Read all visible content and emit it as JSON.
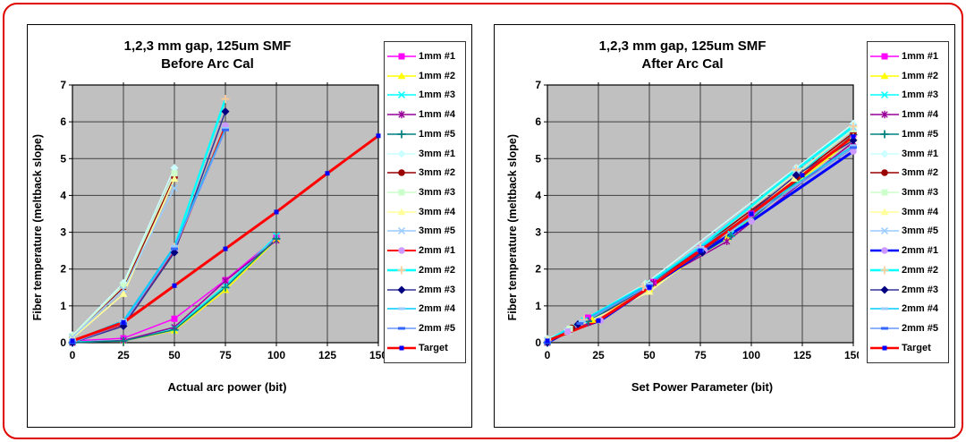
{
  "figure": {
    "frame_color": "#e00000",
    "panel_border_color": "#000000",
    "plot_bg": "#c0c0c0",
    "grid_color": "#404040"
  },
  "chart_data": [
    {
      "type": "line",
      "title_line1": "1,2,3 mm gap, 125um SMF",
      "title_line2": "Before Arc Cal",
      "xlabel": "Actual arc power (bit)",
      "ylabel": "Fiber temperature (meltback slope)",
      "xlim": [
        0,
        150
      ],
      "ylim": [
        0,
        7
      ],
      "x_ticks": [
        0,
        25,
        50,
        75,
        100,
        125,
        150
      ],
      "y_ticks": [
        0,
        1,
        2,
        3,
        4,
        5,
        6,
        7
      ],
      "grid": true,
      "legend_position": "right",
      "series": [
        {
          "name": "1mm #1",
          "line_color": "#FF00FF",
          "marker": "square",
          "marker_color": "#FF00FF",
          "width": 1.5,
          "points": [
            [
              0,
              0.05
            ],
            [
              25,
              0.12
            ],
            [
              50,
              0.65
            ],
            [
              75,
              1.7
            ],
            [
              100,
              2.85
            ]
          ]
        },
        {
          "name": "1mm #2",
          "line_color": "#FFFF00",
          "marker": "triangle",
          "marker_color": "#FFFF00",
          "width": 1.5,
          "points": [
            [
              0,
              0.02
            ],
            [
              25,
              0.05
            ],
            [
              50,
              0.33
            ],
            [
              75,
              1.43
            ],
            [
              100,
              2.8
            ]
          ]
        },
        {
          "name": "1mm #3",
          "line_color": "#00FFFF",
          "marker": "x",
          "marker_color": "#00FFFF",
          "width": 1.5,
          "points": [
            [
              0,
              0.02
            ],
            [
              25,
              0.06
            ],
            [
              50,
              0.4
            ],
            [
              75,
              1.55
            ],
            [
              100,
              2.9
            ]
          ]
        },
        {
          "name": "1mm #4",
          "line_color": "#990099",
          "marker": "asterisk",
          "marker_color": "#990099",
          "width": 1.5,
          "points": [
            [
              0,
              0.0
            ],
            [
              25,
              0.06
            ],
            [
              50,
              0.42
            ],
            [
              75,
              1.68
            ],
            [
              100,
              2.78
            ]
          ]
        },
        {
          "name": "1mm #5",
          "line_color": "#008080",
          "marker": "plus",
          "marker_color": "#008080",
          "width": 1.5,
          "points": [
            [
              0,
              0.0
            ],
            [
              25,
              0.05
            ],
            [
              50,
              0.35
            ],
            [
              75,
              1.5
            ],
            [
              100,
              2.82
            ]
          ]
        },
        {
          "name": "3mm #1",
          "line_color": "#CCFFFF",
          "marker": "diamond",
          "marker_color": "#CCFFFF",
          "width": 1.5,
          "points": [
            [
              0,
              0.2
            ],
            [
              25,
              1.62
            ],
            [
              50,
              4.75
            ]
          ]
        },
        {
          "name": "3mm #2",
          "line_color": "#990000",
          "marker": "circle",
          "marker_color": "#990000",
          "width": 1.5,
          "points": [
            [
              0,
              0.15
            ],
            [
              25,
              1.5
            ],
            [
              50,
              4.5
            ]
          ]
        },
        {
          "name": "3mm #3",
          "line_color": "#CCFFCC",
          "marker": "square",
          "marker_color": "#CCFFCC",
          "width": 1.5,
          "points": [
            [
              0,
              0.18
            ],
            [
              25,
              1.55
            ],
            [
              50,
              4.6
            ]
          ]
        },
        {
          "name": "3mm #4",
          "line_color": "#FFFF99",
          "marker": "triangle",
          "marker_color": "#FFFF99",
          "width": 1.5,
          "points": [
            [
              0,
              0.12
            ],
            [
              25,
              1.32
            ],
            [
              50,
              4.45
            ]
          ]
        },
        {
          "name": "3mm #5",
          "line_color": "#99CCFF",
          "marker": "x",
          "marker_color": "#99CCFF",
          "width": 1.5,
          "points": [
            [
              0,
              0.15
            ],
            [
              25,
              1.45
            ],
            [
              50,
              4.2
            ]
          ]
        },
        {
          "name": "2mm #1",
          "line_color": "#FF0000",
          "marker": "circle",
          "marker_color": "#CC99FF",
          "width": 2,
          "points": [
            [
              0,
              0.03
            ],
            [
              25,
              0.5
            ],
            [
              50,
              2.5
            ],
            [
              75,
              5.9
            ]
          ]
        },
        {
          "name": "2mm #2",
          "line_color": "#00FFFF",
          "marker": "plus",
          "marker_color": "#FFCC99",
          "width": 2.5,
          "points": [
            [
              0,
              0.03
            ],
            [
              25,
              0.55
            ],
            [
              50,
              2.6
            ],
            [
              75,
              6.62
            ]
          ]
        },
        {
          "name": "2mm #3",
          "line_color": "#333399",
          "marker": "diamond",
          "marker_color": "#000080",
          "width": 1.5,
          "points": [
            [
              0,
              0.0
            ],
            [
              25,
              0.45
            ],
            [
              50,
              2.45
            ],
            [
              75,
              6.28
            ]
          ]
        },
        {
          "name": "2mm #4",
          "line_color": "#00CCFF",
          "marker": "dash",
          "marker_color": "#99CCFF",
          "width": 1.5,
          "points": [
            [
              0,
              0.05
            ],
            [
              25,
              0.6
            ],
            [
              50,
              2.62
            ],
            [
              75,
              5.82
            ]
          ]
        },
        {
          "name": "2mm #5",
          "line_color": "#6699FF",
          "marker": "dash",
          "marker_color": "#3366FF",
          "width": 1.5,
          "points": [
            [
              0,
              0.0
            ],
            [
              25,
              0.52
            ],
            [
              50,
              2.55
            ],
            [
              75,
              5.78
            ]
          ]
        },
        {
          "name": "Target",
          "line_color": "#FF0000",
          "marker": "square-small",
          "marker_color": "#0000FF",
          "width": 3,
          "points": [
            [
              0,
              0.05
            ],
            [
              25,
              0.55
            ],
            [
              50,
              1.55
            ],
            [
              75,
              2.55
            ],
            [
              100,
              3.55
            ],
            [
              125,
              4.6
            ],
            [
              150,
              5.62
            ]
          ]
        }
      ]
    },
    {
      "type": "line",
      "title_line1": "1,2,3 mm gap, 125um SMF",
      "title_line2": "After Arc Cal",
      "xlabel": "Set Power Parameter (bit)",
      "ylabel": "Fiber temperature (meltback slope)",
      "xlim": [
        0,
        150
      ],
      "ylim": [
        0,
        7
      ],
      "x_ticks": [
        0,
        25,
        50,
        75,
        100,
        125,
        150
      ],
      "y_ticks": [
        0,
        1,
        2,
        3,
        4,
        5,
        6,
        7
      ],
      "grid": true,
      "legend_position": "right",
      "series": [
        {
          "name": "1mm #1",
          "line_color": "#FF00FF",
          "marker": "square",
          "marker_color": "#FF00FF",
          "width": 1.5,
          "points": [
            [
              0,
              0.05
            ],
            [
              20,
              0.68
            ],
            [
              52,
              1.65
            ],
            [
              75,
              2.55
            ],
            [
              100,
              3.5
            ],
            [
              150,
              5.6
            ]
          ]
        },
        {
          "name": "1mm #2",
          "line_color": "#FFFF00",
          "marker": "triangle",
          "marker_color": "#FFFF00",
          "width": 1.5,
          "points": [
            [
              0,
              0.0
            ],
            [
              22,
              0.62
            ],
            [
              50,
              1.45
            ],
            [
              88,
              2.85
            ],
            [
              150,
              5.55
            ]
          ]
        },
        {
          "name": "1mm #3",
          "line_color": "#00FFFF",
          "marker": "x",
          "marker_color": "#00FFFF",
          "width": 1.5,
          "points": [
            [
              0,
              0.02
            ],
            [
              18,
              0.6
            ],
            [
              50,
              1.6
            ],
            [
              90,
              2.95
            ],
            [
              150,
              5.85
            ]
          ]
        },
        {
          "name": "1mm #4",
          "line_color": "#990099",
          "marker": "asterisk",
          "marker_color": "#990099",
          "width": 1.5,
          "points": [
            [
              0,
              0.0
            ],
            [
              20,
              0.55
            ],
            [
              52,
              1.62
            ],
            [
              88,
              2.75
            ],
            [
              150,
              5.45
            ]
          ]
        },
        {
          "name": "1mm #5",
          "line_color": "#008080",
          "marker": "plus",
          "marker_color": "#008080",
          "width": 1.5,
          "points": [
            [
              0,
              0.0
            ],
            [
              20,
              0.58
            ],
            [
              50,
              1.55
            ],
            [
              90,
              2.9
            ],
            [
              150,
              5.65
            ]
          ]
        },
        {
          "name": "3mm #1",
          "line_color": "#CCFFFF",
          "marker": "diamond",
          "marker_color": "#CCFFFF",
          "width": 1.5,
          "points": [
            [
              0,
              0.1
            ],
            [
              10,
              0.35
            ],
            [
              48,
              1.6
            ],
            [
              122,
              4.75
            ],
            [
              150,
              5.95
            ]
          ]
        },
        {
          "name": "3mm #2",
          "line_color": "#990000",
          "marker": "circle",
          "marker_color": "#990000",
          "width": 1.5,
          "points": [
            [
              0,
              0.05
            ],
            [
              12,
              0.4
            ],
            [
              50,
              1.55
            ],
            [
              122,
              4.5
            ],
            [
              150,
              5.7
            ]
          ]
        },
        {
          "name": "3mm #3",
          "line_color": "#CCFFCC",
          "marker": "square",
          "marker_color": "#CCFFCC",
          "width": 1.5,
          "points": [
            [
              0,
              0.08
            ],
            [
              11,
              0.38
            ],
            [
              49,
              1.58
            ],
            [
              122,
              4.6
            ],
            [
              150,
              5.8
            ]
          ]
        },
        {
          "name": "3mm #4",
          "line_color": "#FFFF99",
          "marker": "triangle",
          "marker_color": "#FFFF99",
          "width": 1.5,
          "points": [
            [
              0,
              0.05
            ],
            [
              10,
              0.3
            ],
            [
              50,
              1.38
            ],
            [
              121,
              4.45
            ],
            [
              150,
              5.6
            ]
          ]
        },
        {
          "name": "3mm #5",
          "line_color": "#99CCFF",
          "marker": "x",
          "marker_color": "#99CCFF",
          "width": 1.5,
          "points": [
            [
              0,
              0.06
            ],
            [
              10,
              0.32
            ],
            [
              48,
              1.5
            ],
            [
              122,
              4.68
            ],
            [
              150,
              5.85
            ]
          ]
        },
        {
          "name": "2mm #1",
          "line_color": "#0000FF",
          "marker": "circle",
          "marker_color": "#CC99FF",
          "width": 3,
          "points": [
            [
              0,
              0.0
            ],
            [
              10,
              0.3
            ],
            [
              26,
              0.6
            ],
            [
              50,
              1.5
            ],
            [
              77,
              2.5
            ],
            [
              100,
              3.3
            ],
            [
              150,
              5.2
            ]
          ]
        },
        {
          "name": "2mm #2",
          "line_color": "#00FFFF",
          "marker": "plus",
          "marker_color": "#FFCC99",
          "width": 2.5,
          "points": [
            [
              0,
              0.05
            ],
            [
              18,
              0.62
            ],
            [
              47,
              1.52
            ],
            [
              75,
              2.6
            ],
            [
              122,
              4.7
            ],
            [
              150,
              5.88
            ]
          ]
        },
        {
          "name": "2mm #3",
          "line_color": "#333399",
          "marker": "diamond",
          "marker_color": "#000080",
          "width": 1.5,
          "points": [
            [
              0,
              0.0
            ],
            [
              15,
              0.5
            ],
            [
              50,
              1.55
            ],
            [
              76,
              2.45
            ],
            [
              122,
              4.55
            ],
            [
              150,
              5.5
            ]
          ]
        },
        {
          "name": "2mm #4",
          "line_color": "#00CCFF",
          "marker": "dash",
          "marker_color": "#99CCFF",
          "width": 1.5,
          "points": [
            [
              0,
              0.02
            ],
            [
              17,
              0.58
            ],
            [
              50,
              1.6
            ],
            [
              75,
              2.58
            ],
            [
              150,
              5.35
            ]
          ]
        },
        {
          "name": "2mm #5",
          "line_color": "#6699FF",
          "marker": "dash",
          "marker_color": "#3366FF",
          "width": 1.5,
          "points": [
            [
              0,
              0.0
            ],
            [
              16,
              0.52
            ],
            [
              50,
              1.55
            ],
            [
              75,
              2.5
            ],
            [
              150,
              5.3
            ]
          ]
        },
        {
          "name": "Target",
          "line_color": "#FF0000",
          "marker": "square-small",
          "marker_color": "#0000FF",
          "width": 3,
          "points": [
            [
              0,
              0.05
            ],
            [
              25,
              0.6
            ],
            [
              50,
              1.5
            ],
            [
              75,
              2.5
            ],
            [
              100,
              3.5
            ],
            [
              125,
              4.55
            ],
            [
              150,
              5.6
            ]
          ]
        }
      ]
    }
  ]
}
